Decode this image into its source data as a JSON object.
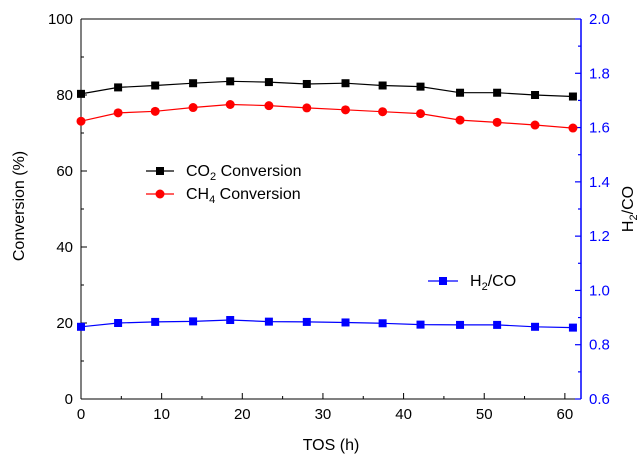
{
  "chart_data": {
    "type": "line",
    "xlabel": "TOS (h)",
    "ylabel_left": "Conversion (%)",
    "ylabel_right": "H2/CO",
    "xlim": [
      0,
      62
    ],
    "xticks": [
      0,
      10,
      20,
      30,
      40,
      50,
      60
    ],
    "ylim_left": [
      0,
      100
    ],
    "yticks_left": [
      0,
      20,
      40,
      60,
      80,
      100
    ],
    "ylim_right": [
      0.6,
      2.0
    ],
    "yticks_right": [
      "0.6",
      "0.8",
      "1.0",
      "1.2",
      "1.4",
      "1.6",
      "1.8",
      "2.0"
    ],
    "right_axis_color": "#0000ff",
    "grid": false,
    "series": [
      {
        "name": "CO2 Conversion",
        "name_main": "CO",
        "name_sub": "2",
        "name_rest": " Conversion",
        "axis": "left",
        "color": "#000000",
        "marker": "square",
        "x": [
          0,
          4.6,
          9.2,
          13.9,
          18.5,
          23.3,
          28.0,
          32.8,
          37.4,
          42.1,
          47.0,
          51.6,
          56.3,
          61.0
        ],
        "values": [
          80.3,
          82.0,
          82.5,
          83.1,
          83.6,
          83.4,
          82.9,
          83.1,
          82.5,
          82.2,
          80.6,
          80.6,
          80.0,
          79.6
        ]
      },
      {
        "name": "CH4 Conversion",
        "name_main": "CH",
        "name_sub": "4",
        "name_rest": " Conversion",
        "axis": "left",
        "color": "#ff0000",
        "marker": "circle",
        "x": [
          0,
          4.6,
          9.2,
          13.9,
          18.5,
          23.3,
          28.0,
          32.8,
          37.4,
          42.1,
          47.0,
          51.6,
          56.3,
          61.0
        ],
        "values": [
          73.1,
          75.3,
          75.7,
          76.7,
          77.5,
          77.2,
          76.6,
          76.1,
          75.6,
          75.1,
          73.4,
          72.8,
          72.1,
          71.3
        ]
      },
      {
        "name": "H2/CO",
        "name_main": "H",
        "name_sub": "2",
        "name_rest": "/CO",
        "axis": "right",
        "color": "#0000ff",
        "marker": "square",
        "x": [
          0,
          4.6,
          9.2,
          13.9,
          18.5,
          23.3,
          28.0,
          32.8,
          37.4,
          42.1,
          47.0,
          51.6,
          56.3,
          61.0
        ],
        "values": [
          0.866,
          0.88,
          0.884,
          0.886,
          0.891,
          0.885,
          0.884,
          0.882,
          0.879,
          0.874,
          0.873,
          0.873,
          0.866,
          0.863
        ]
      }
    ]
  }
}
